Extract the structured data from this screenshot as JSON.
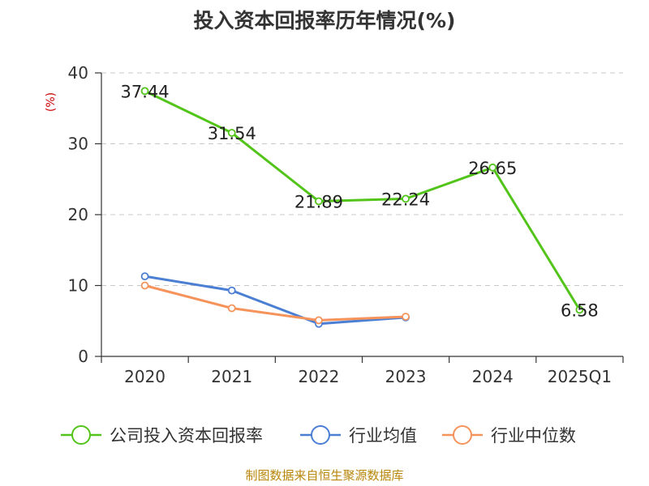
{
  "chart_data": {
    "type": "line",
    "title": "投入资本回报率历年情况(%)",
    "ylabel": "(%)",
    "xlabel": "",
    "categories": [
      "2020",
      "2021",
      "2022",
      "2023",
      "2024",
      "2025Q1"
    ],
    "ylim": [
      0,
      40
    ],
    "yticks": [
      0,
      10,
      20,
      30,
      40
    ],
    "grid": true,
    "legend_position": "bottom",
    "series": [
      {
        "name": "公司投入资本回报率",
        "color": "#52c41a",
        "values": [
          37.44,
          31.54,
          21.89,
          22.24,
          26.65,
          6.58
        ],
        "labels": [
          "37.44",
          "31.54",
          "21.89",
          "22.24",
          "26.65",
          "6.58"
        ]
      },
      {
        "name": "行业均值",
        "color": "#4a7fd4",
        "values": [
          11.3,
          9.3,
          4.6,
          5.5,
          null,
          null
        ]
      },
      {
        "name": "行业中位数",
        "color": "#f5935b",
        "values": [
          10.0,
          6.8,
          5.1,
          5.6,
          null,
          null
        ]
      }
    ]
  },
  "footer": "制图数据来自恒生聚源数据库"
}
